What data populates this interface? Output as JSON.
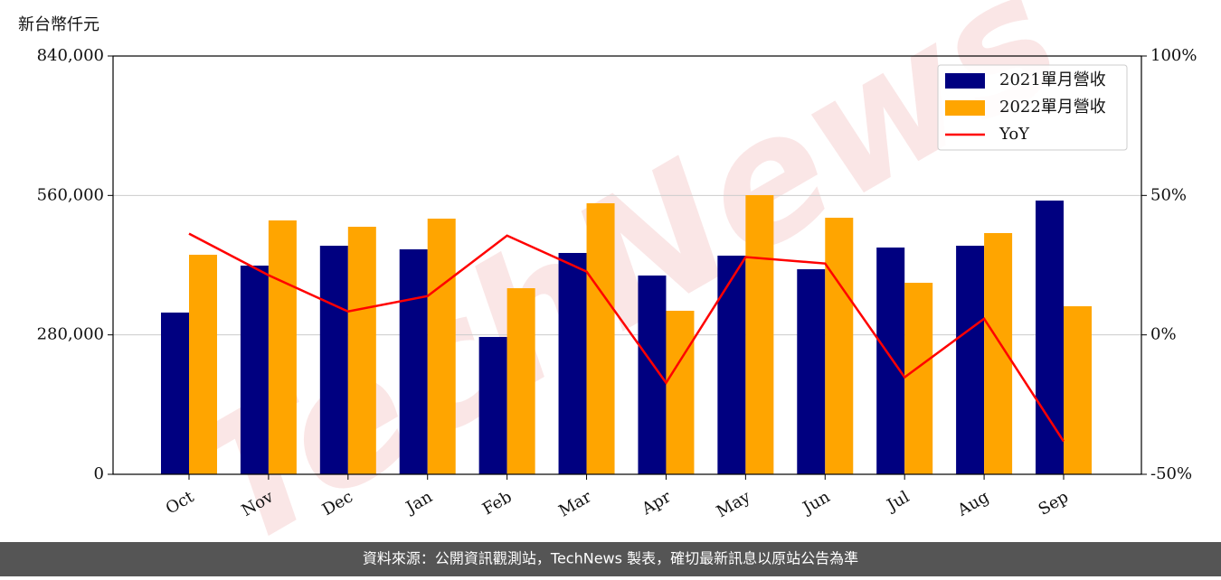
{
  "chart_data": {
    "type": "bar_line",
    "y_label": "新台幣仟元",
    "watermark": "TechNews",
    "footer": "資料來源：公開資訊觀測站，TechNews 製表，確切最新訊息以原站公告為準",
    "categories": [
      "Oct",
      "Nov",
      "Dec",
      "Jan",
      "Feb",
      "Mar",
      "Apr",
      "May",
      "Jun",
      "Jul",
      "Aug",
      "Sep"
    ],
    "series": [
      {
        "name": "2021單月營收",
        "color": "#000080",
        "kind": "bar",
        "values": [
          324800,
          419100,
          459000,
          451800,
          275800,
          444500,
          399200,
          439100,
          411800,
          455400,
          459000,
          549700
        ]
      },
      {
        "name": "2022單月營收",
        "color": "#ffa500",
        "kind": "bar",
        "values": [
          440900,
          509800,
          497100,
          513400,
          373700,
          544300,
          328400,
          560600,
          515200,
          384600,
          484400,
          337500
        ]
      },
      {
        "name": "YoY",
        "color": "#ff0000",
        "kind": "line",
        "axis": "y2",
        "values": [
          36.3,
          21.4,
          8.4,
          13.9,
          35.6,
          22.7,
          -17.2,
          27.9,
          25.6,
          -15.2,
          5.8,
          -38.2
        ]
      }
    ],
    "ylim": [
      0,
      840000
    ],
    "yticks": [
      {
        "value": 0,
        "label": "0"
      },
      {
        "value": 280000,
        "label": "280,000"
      },
      {
        "value": 560000,
        "label": "560,000"
      },
      {
        "value": 840000,
        "label": "840,000"
      }
    ],
    "y2lim": [
      -50,
      100
    ],
    "y2ticks": [
      {
        "value": -50,
        "label": "-50%"
      },
      {
        "value": 0,
        "label": "0%"
      },
      {
        "value": 50,
        "label": "50%"
      },
      {
        "value": 100,
        "label": "100%"
      }
    ],
    "grid": true,
    "legend": "upper right"
  }
}
